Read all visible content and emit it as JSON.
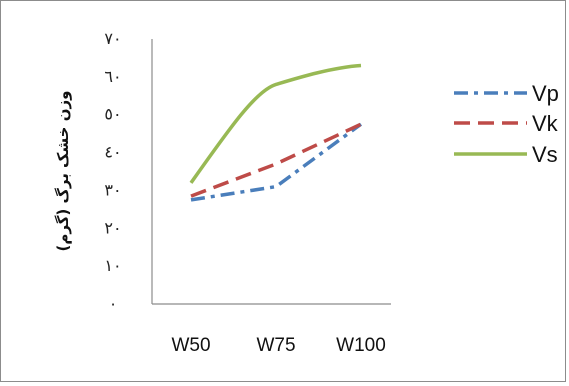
{
  "chart_data": {
    "type": "line",
    "title": "",
    "xlabel": "",
    "ylabel": "وزن خشک برگ (گرم)",
    "categories": [
      "W50",
      "W75",
      "W100"
    ],
    "ylim": [
      0,
      70
    ],
    "yticks": [
      0,
      10,
      20,
      30,
      40,
      50,
      60,
      70
    ],
    "ytick_labels": [
      "٠",
      "١٠",
      "٢٠",
      "٣٠",
      "٤٠",
      "٥٠",
      "٦٠",
      "٧٠"
    ],
    "grid": false,
    "legend_position": "right",
    "series": [
      {
        "name": "Vp",
        "values": [
          27.5,
          31,
          47.5
        ],
        "color": "#4a7ebb",
        "style": "dash-dot"
      },
      {
        "name": "Vk",
        "values": [
          28.5,
          37,
          47.5
        ],
        "color": "#be4b48",
        "style": "dashed"
      },
      {
        "name": "Vs",
        "values": [
          32,
          58,
          63
        ],
        "color": "#98b954",
        "style": "solid"
      }
    ]
  }
}
